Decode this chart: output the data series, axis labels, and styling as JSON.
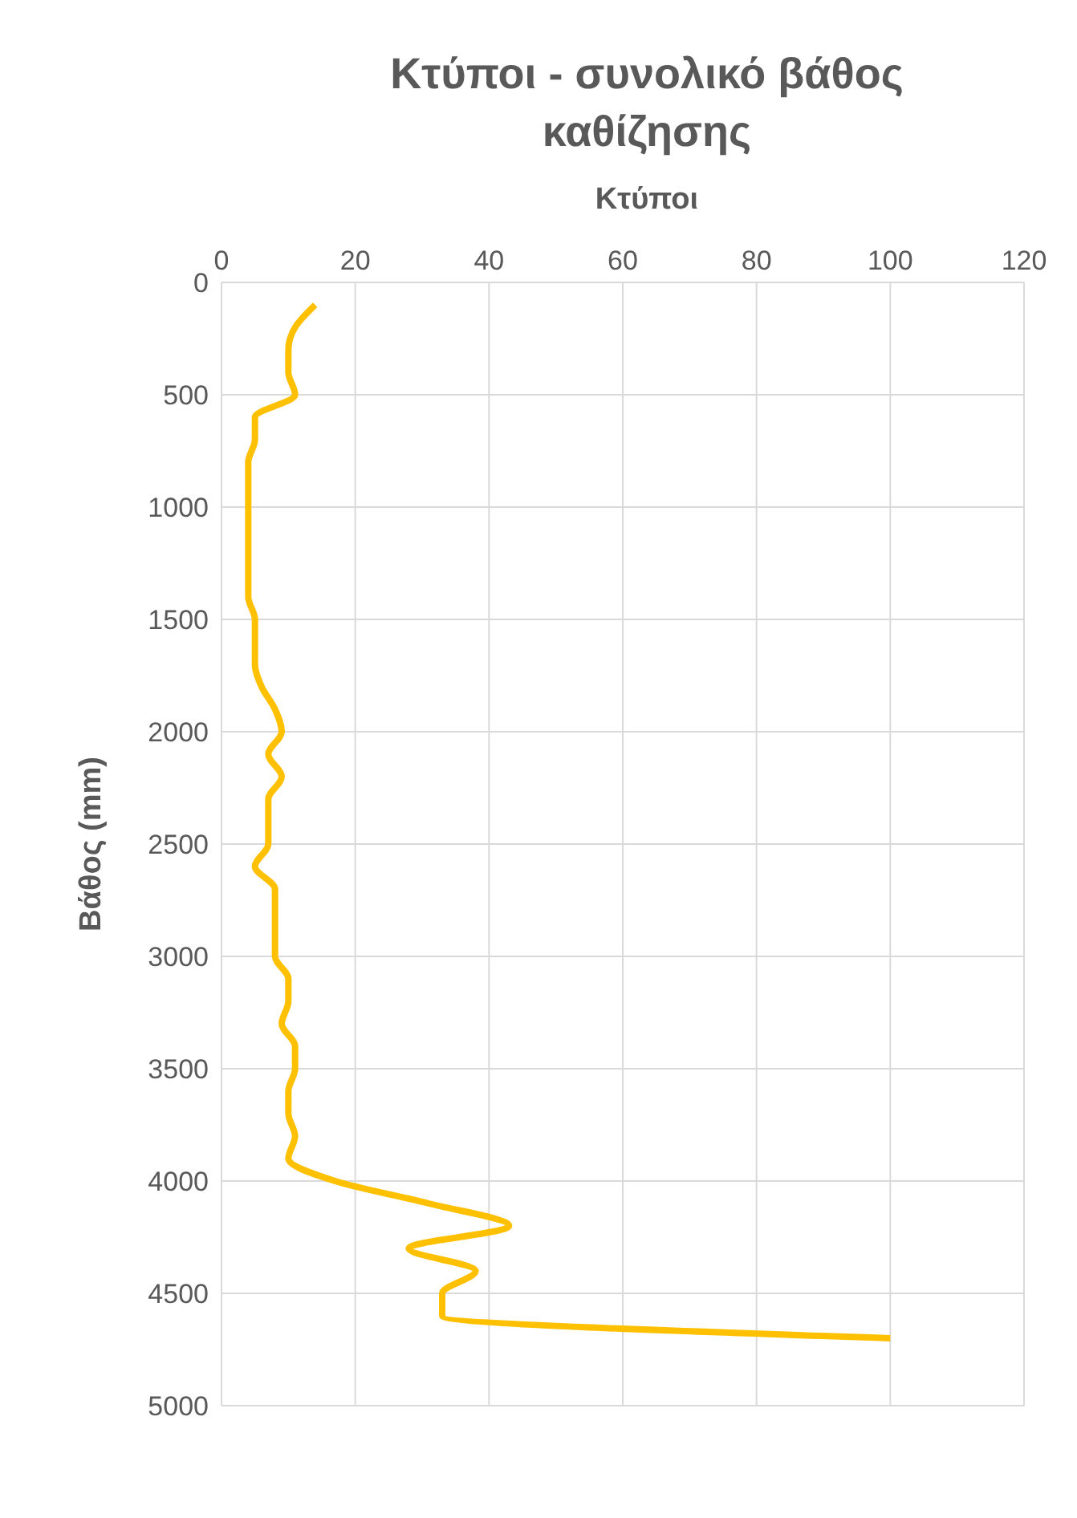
{
  "chart_data": {
    "type": "line",
    "title": "Κτύποι - συνολικό βάθος καθίζησης",
    "xlabel": "Κτύποι",
    "ylabel": "Βάθος (mm)",
    "series": [
      {
        "color": "#ffc000",
        "x": [
          14,
          11,
          10,
          10,
          11,
          5,
          5,
          4,
          4,
          4,
          4,
          4,
          4,
          4,
          5,
          5,
          5,
          6,
          8,
          9,
          7,
          9,
          7,
          7,
          7,
          5,
          8,
          8,
          8,
          8,
          10,
          10,
          9,
          11,
          11,
          10,
          10,
          11,
          10,
          17,
          31,
          43,
          28,
          38,
          33,
          33,
          100
        ],
        "values": [
          100,
          200,
          300,
          400,
          500,
          600,
          700,
          800,
          900,
          1000,
          1100,
          1200,
          1300,
          1400,
          1500,
          1600,
          1700,
          1800,
          1900,
          2000,
          2100,
          2200,
          2300,
          2400,
          2500,
          2600,
          2700,
          2800,
          2900,
          3000,
          3100,
          3200,
          3300,
          3400,
          3500,
          3600,
          3700,
          3800,
          3900,
          4000,
          4100,
          4200,
          4300,
          4400,
          4500,
          4600,
          4700
        ]
      }
    ],
    "xlim": [
      0,
      120
    ],
    "xticks": [
      0,
      20,
      40,
      60,
      80,
      100,
      120
    ],
    "ylim": [
      5000,
      0
    ],
    "yticks": [
      0,
      500,
      1000,
      1500,
      2000,
      2500,
      3000,
      3500,
      4000,
      4500,
      5000
    ],
    "grid": true,
    "legend": false,
    "marker": "none",
    "line_style": "solid"
  }
}
